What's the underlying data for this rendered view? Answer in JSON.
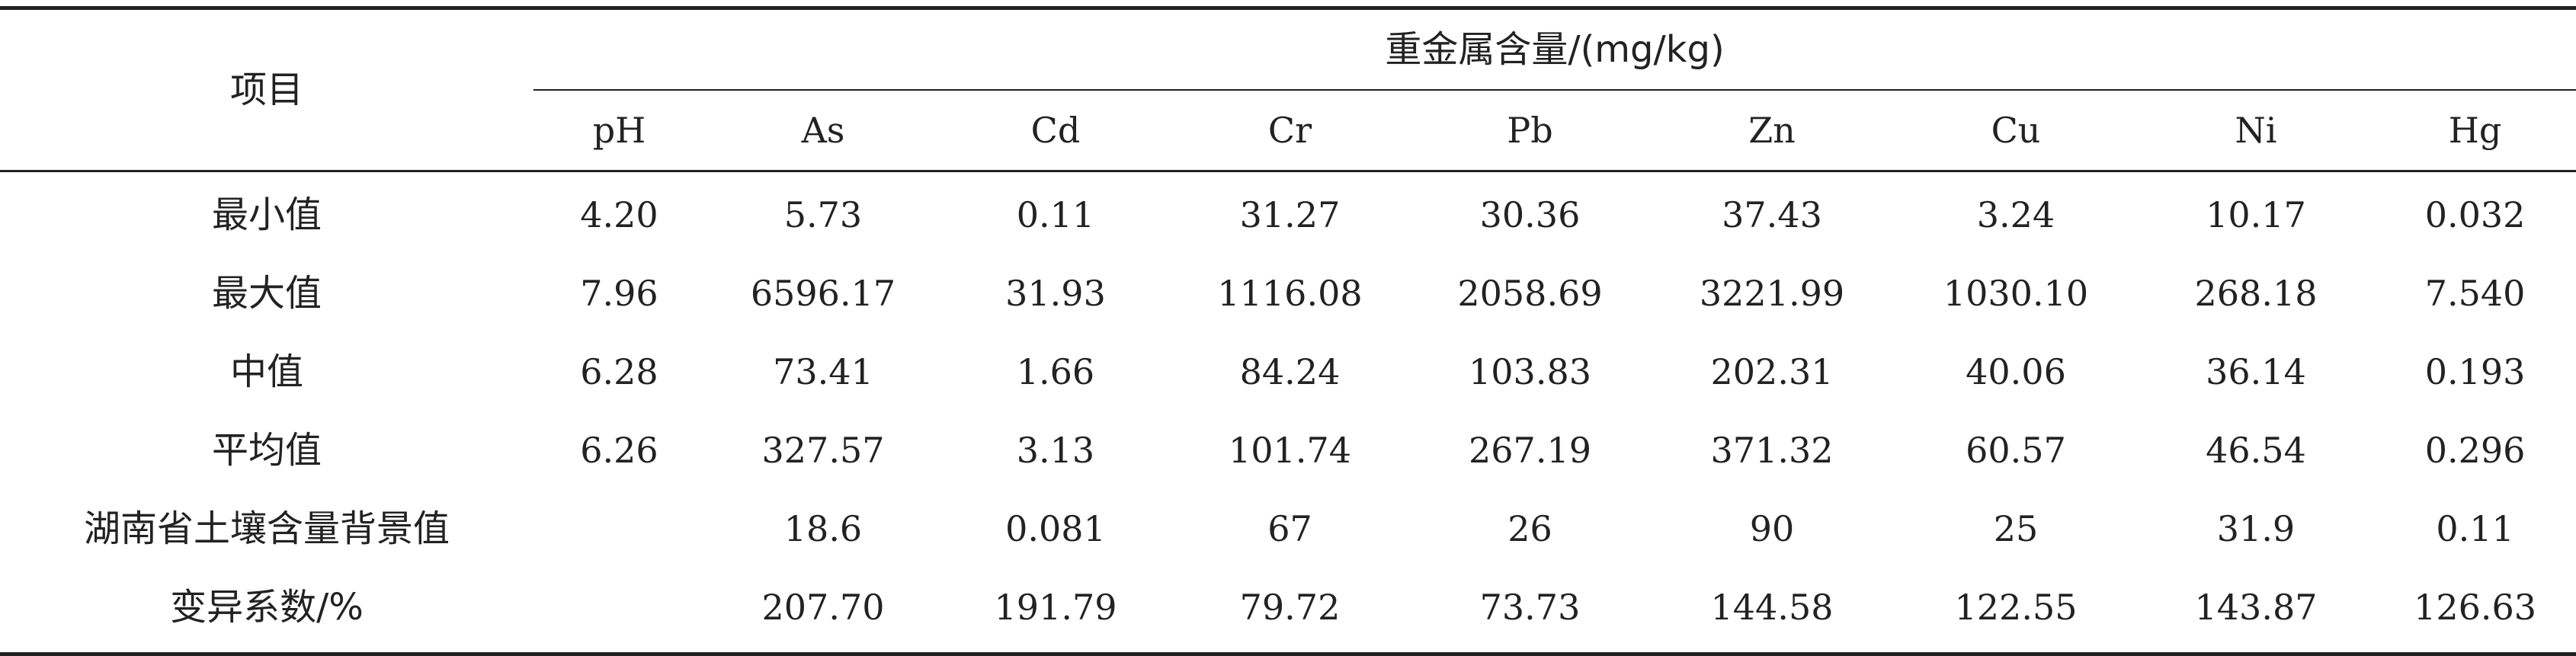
{
  "table": {
    "item_header": "项目",
    "group_header": "重金属含量/(mg/kg)",
    "columns": [
      "pH",
      "As",
      "Cd",
      "Cr",
      "Pb",
      "Zn",
      "Cu",
      "Ni",
      "Hg"
    ],
    "rows": [
      {
        "label": "最小值",
        "values": [
          "4.20",
          "5.73",
          "0.11",
          "31.27",
          "30.36",
          "37.43",
          "3.24",
          "10.17",
          "0.032"
        ]
      },
      {
        "label": "最大值",
        "values": [
          "7.96",
          "6596.17",
          "31.93",
          "1116.08",
          "2058.69",
          "3221.99",
          "1030.10",
          "268.18",
          "7.540"
        ]
      },
      {
        "label": "中值",
        "values": [
          "6.28",
          "73.41",
          "1.66",
          "84.24",
          "103.83",
          "202.31",
          "40.06",
          "36.14",
          "0.193"
        ]
      },
      {
        "label": "平均值",
        "values": [
          "6.26",
          "327.57",
          "3.13",
          "101.74",
          "267.19",
          "371.32",
          "60.57",
          "46.54",
          "0.296"
        ]
      },
      {
        "label": "湖南省土壤含量背景值",
        "values": [
          "",
          "18.6",
          "0.081",
          "67",
          "26",
          "90",
          "25",
          "31.9",
          "0.11"
        ]
      },
      {
        "label": "变异系数/%",
        "values": [
          "",
          "207.70",
          "191.79",
          "79.72",
          "73.73",
          "144.58",
          "122.55",
          "143.87",
          "126.63"
        ]
      }
    ]
  }
}
